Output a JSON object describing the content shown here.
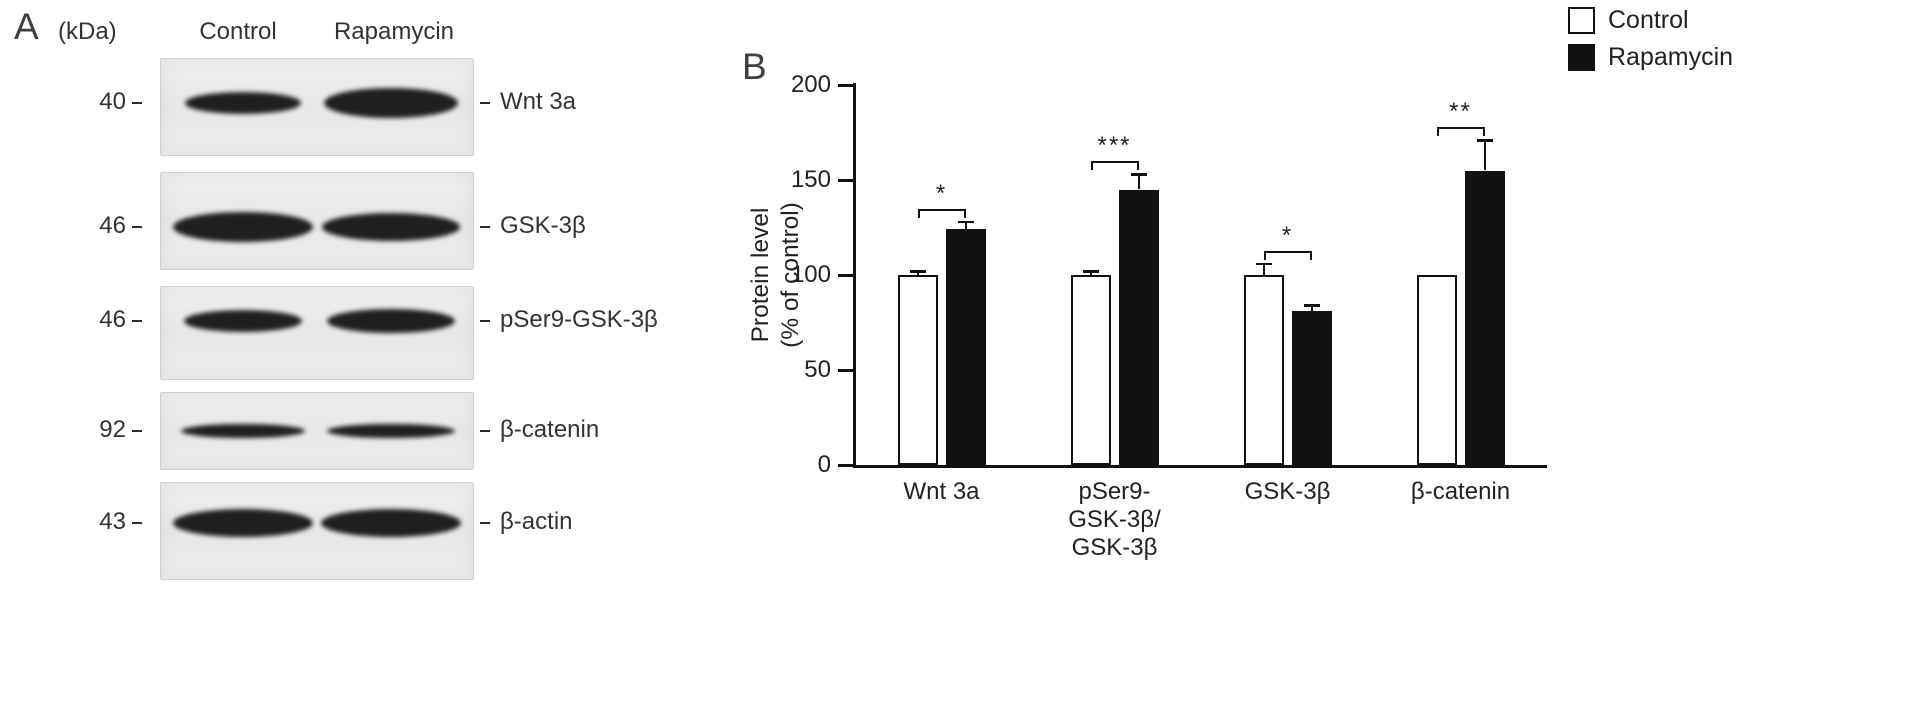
{
  "figure": {
    "panelA": {
      "label": "A",
      "kda_header": "(kDa)",
      "col_headers": [
        "Control",
        "Rapamycin"
      ],
      "rows": [
        {
          "kda": "40",
          "label": "Wnt 3a"
        },
        {
          "kda": "46",
          "label": "GSK-3β"
        },
        {
          "kda": "46",
          "label": "pSer9-GSK-3β"
        },
        {
          "kda": "92",
          "label": "β-catenin"
        },
        {
          "kda": "43",
          "label": "β-actin"
        }
      ]
    },
    "panelB": {
      "label": "B"
    }
  },
  "legend": {
    "items": [
      {
        "label": "Control",
        "color": "#ffffff"
      },
      {
        "label": "Rapamycin",
        "color": "#111111"
      }
    ]
  },
  "chart_data": {
    "type": "bar",
    "title": "",
    "xlabel": "",
    "ylabel": "Protein level\n(% of control)",
    "ylim": [
      0,
      200
    ],
    "yticks": [
      0,
      50,
      100,
      150,
      200
    ],
    "grid": false,
    "legend_position": "top-right",
    "categories": [
      "Wnt 3a",
      "pSer9-\nGSK-3β/\nGSK-3β",
      "GSK-3β",
      "β-catenin"
    ],
    "series": [
      {
        "name": "Control",
        "fill": "#ffffff",
        "values": [
          100,
          100,
          100,
          100
        ],
        "errors": [
          2,
          2,
          6,
          0
        ]
      },
      {
        "name": "Rapamycin",
        "fill": "#111111",
        "values": [
          124,
          145,
          81,
          155
        ],
        "errors": [
          4,
          8,
          3,
          16
        ]
      }
    ],
    "significance": [
      "*",
      "***",
      "*",
      "**"
    ]
  }
}
